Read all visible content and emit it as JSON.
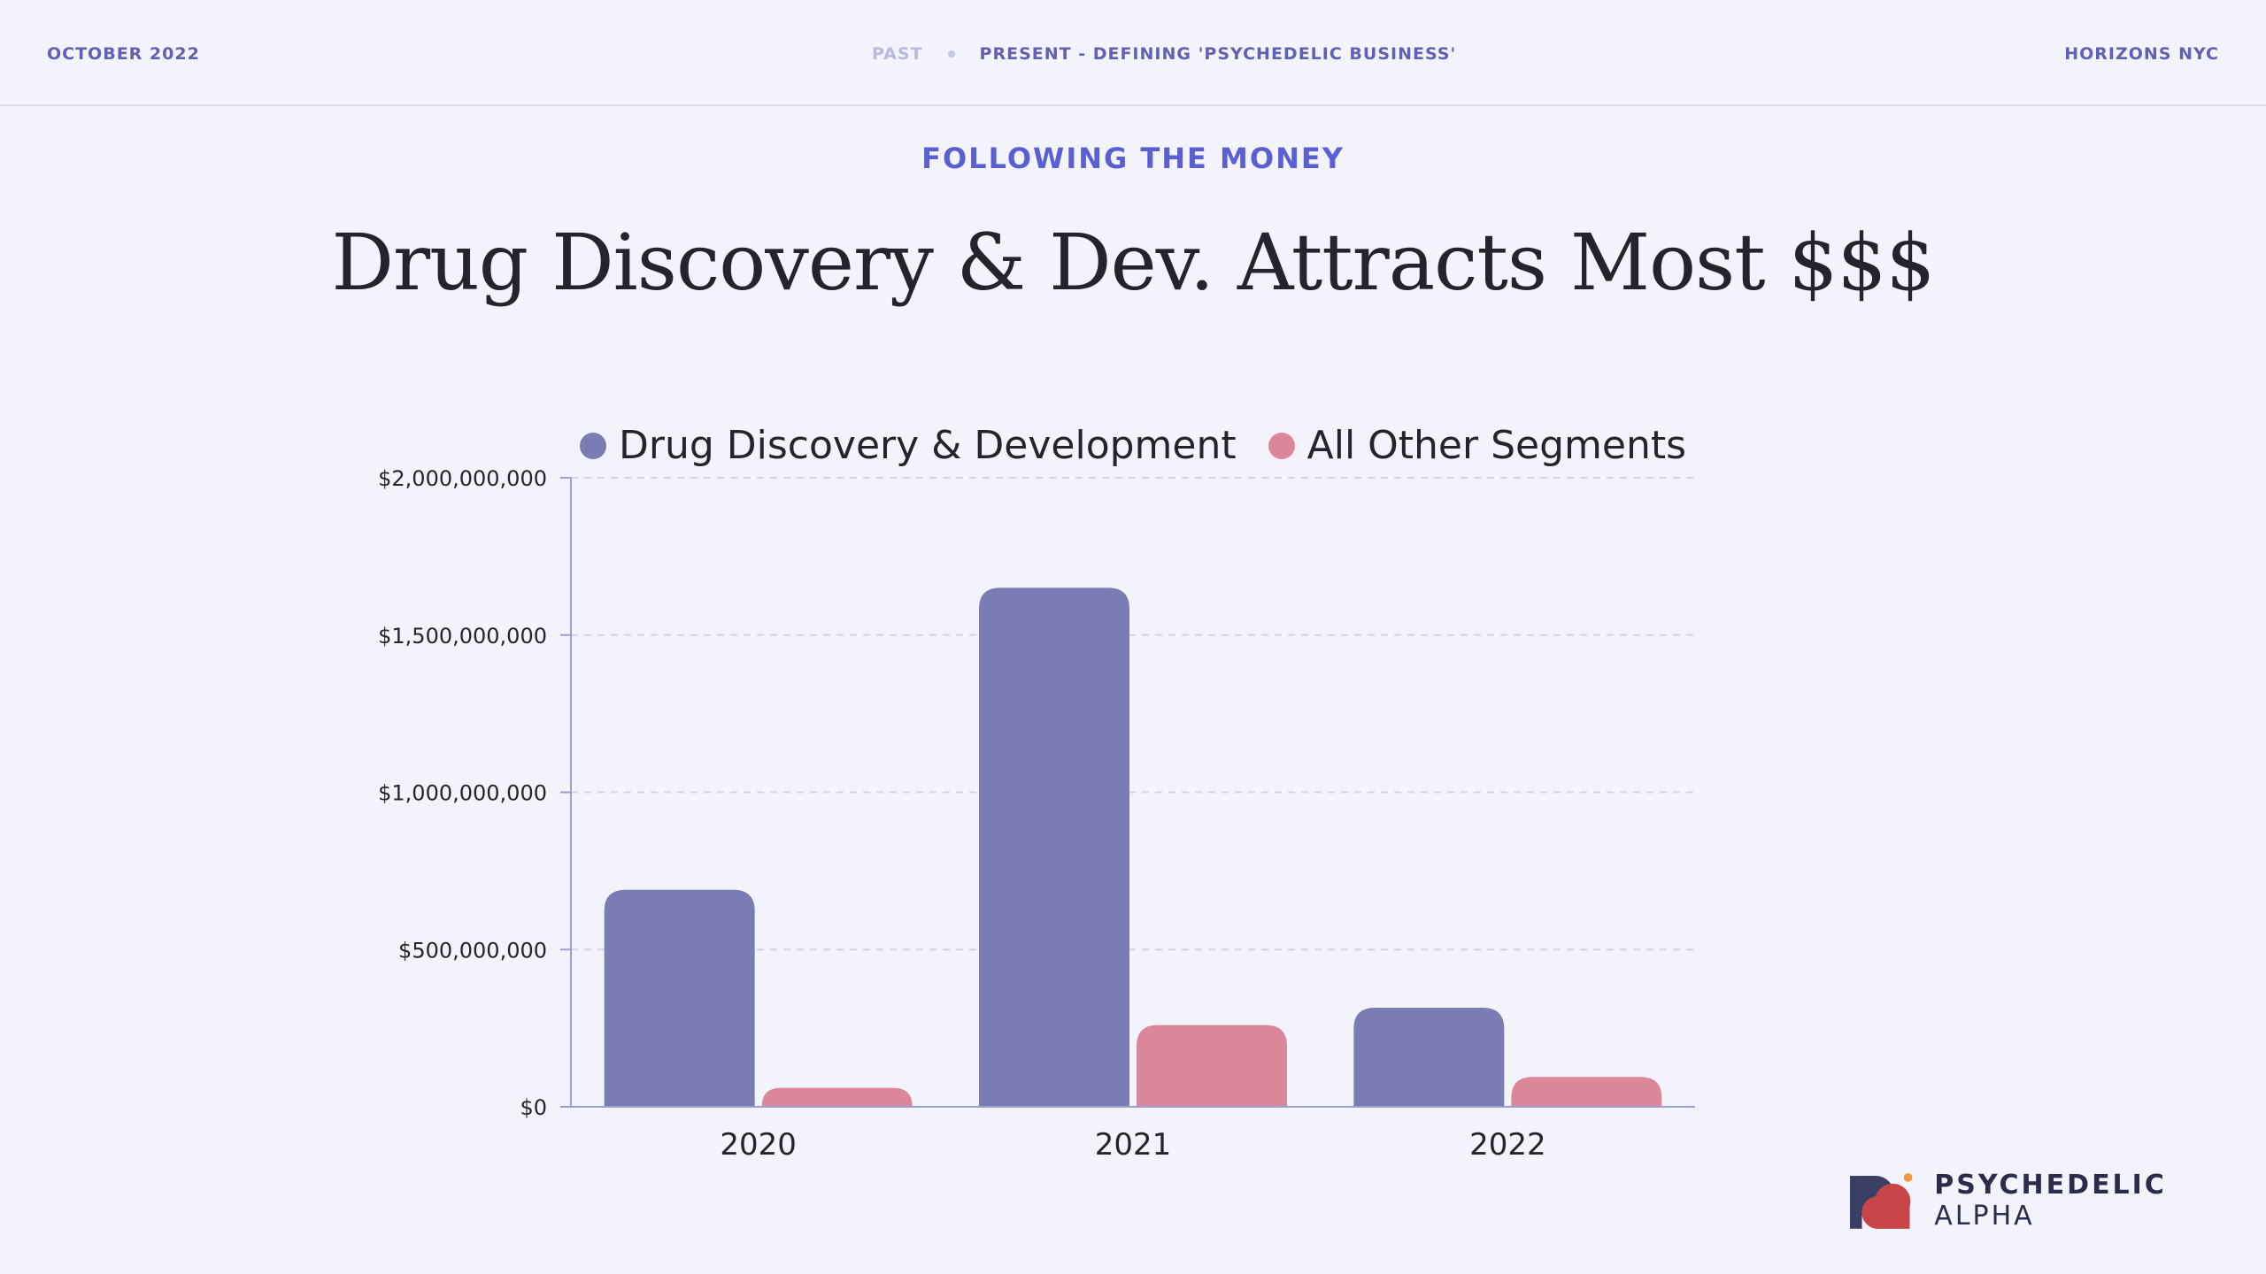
{
  "header": {
    "date": "OCTOBER 2022",
    "nav_past": "PAST",
    "nav_present": "PRESENT - DEFINING 'PSYCHEDELIC BUSINESS'",
    "event": "HORIZONS NYC"
  },
  "slide": {
    "subtitle": "FOLLOWING THE MONEY",
    "title": "Drug Discovery & Dev. Attracts Most $$$"
  },
  "brand": {
    "name_bold": "PSYCHEDELIC",
    "name_light": "ALPHA"
  },
  "chart_data": {
    "type": "bar",
    "categories": [
      "2020",
      "2021",
      "2022"
    ],
    "series": [
      {
        "name": "Drug Discovery & Development",
        "color": "#7a7db3",
        "values": [
          690000000,
          1650000000,
          315000000
        ]
      },
      {
        "name": "All Other Segments",
        "color": "#dc869a",
        "values": [
          60000000,
          260000000,
          95000000
        ]
      }
    ],
    "ylim": [
      0,
      2000000000
    ],
    "yticks": [
      0,
      500000000,
      1000000000,
      1500000000,
      2000000000
    ],
    "ytick_labels": [
      "$0",
      "$500,000,000",
      "$1,000,000,000",
      "$1,500,000,000",
      "$2,000,000,000"
    ],
    "grid": true,
    "legend_position": "top"
  }
}
